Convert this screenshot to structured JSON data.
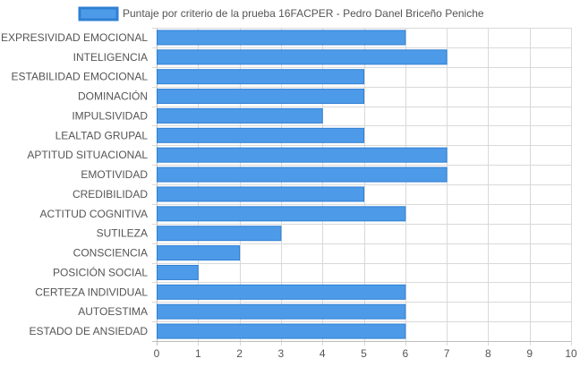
{
  "chart_data": {
    "type": "bar",
    "orientation": "horizontal",
    "legend_position": "top",
    "grid": true,
    "xlim": [
      0,
      10
    ],
    "x_ticks": [
      0,
      1,
      2,
      3,
      4,
      5,
      6,
      7,
      8,
      9,
      10
    ],
    "categories": [
      "EXPRESIVIDAD EMOCIONAL",
      "INTELIGENCIA",
      "ESTABILIDAD EMOCIONAL",
      "DOMINACIÓN",
      "IMPULSIVIDAD",
      "LEALTAD GRUPAL",
      "APTITUD SITUACIONAL",
      "EMOTIVIDAD",
      "CREDIBILIDAD",
      "ACTITUD COGNITIVA",
      "SUTILEZA",
      "CONSCIENCIA",
      "POSICIÓN SOCIAL",
      "CERTEZA INDIVIDUAL",
      "AUTOESTIMA",
      "ESTADO DE ANSIEDAD"
    ],
    "series": [
      {
        "name": "Puntaje por criterio de la prueba 16FACPER - Pedro Danel Briceño Peniche",
        "values": [
          6,
          7,
          5,
          5,
          4,
          5,
          7,
          7,
          5,
          6,
          3,
          2,
          1,
          6,
          6,
          6
        ],
        "fill_color": "#4d9be8",
        "border_color": "#2f7fd4"
      }
    ],
    "grid_color": "#d9d9d9",
    "axis_color": "#cfcfcf"
  }
}
